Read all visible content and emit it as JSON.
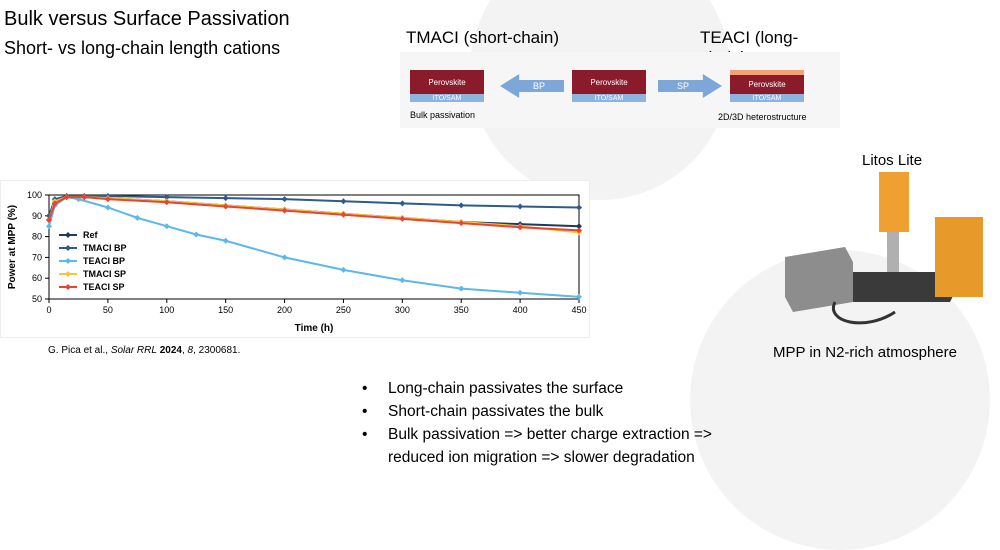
{
  "slide": {
    "title": "Bulk versus Surface Passivation",
    "subtitle": "Short- vs long-chain length cations"
  },
  "schematic": {
    "left_label": "TMACI (short-chain)",
    "right_label": "TEACI (long-chain)",
    "layer_top": "Perovskite",
    "layer_bottom": "ITO/SAM",
    "arrow_left": "BP",
    "arrow_right": "SP",
    "caption_left": "Bulk passivation",
    "caption_right": "2D/3D heterostructure",
    "colors": {
      "perovskite": "#8b1a2b",
      "perovskite_2d": "#f4a27a",
      "substrate": "#8db3df",
      "arrow": "#7da7d9"
    }
  },
  "reference": {
    "authors": "G. Pica et al., ",
    "journal": "Solar RRL",
    "year": "2024",
    "volume": "8",
    "article": "2300681."
  },
  "instrument": {
    "title": "Litos Lite",
    "caption": "MPP in N2-rich atmosphere"
  },
  "bullets": [
    "Long-chain passivates the surface",
    "Short-chain passivates the bulk",
    "Bulk passivation => better charge extraction =>",
    "reduced ion migration => slower degradation"
  ],
  "chart_data": {
    "type": "line",
    "xlabel": "Time (h)",
    "ylabel": "Power at MPP (%)",
    "xlim": [
      0,
      450
    ],
    "ylim": [
      50,
      100
    ],
    "xticks": [
      0,
      50,
      100,
      150,
      200,
      250,
      300,
      350,
      400,
      450
    ],
    "yticks": [
      50,
      60,
      70,
      80,
      90,
      100
    ],
    "grid": false,
    "legend_position": "left",
    "series": [
      {
        "name": "Ref",
        "color": "#1f3a5f",
        "x": [
          0,
          5,
          15,
          30,
          50,
          100,
          150,
          200,
          250,
          300,
          350,
          400,
          450
        ],
        "y": [
          88,
          97,
          99,
          99,
          98.5,
          97,
          95,
          93,
          91,
          89,
          87,
          86,
          85
        ]
      },
      {
        "name": "TMACI BP",
        "color": "#2e5b8a",
        "x": [
          0,
          5,
          15,
          30,
          50,
          100,
          150,
          200,
          250,
          300,
          350,
          400,
          450
        ],
        "y": [
          90,
          98,
          99.5,
          99.5,
          99.5,
          99,
          98.5,
          98,
          97,
          96,
          95,
          94.5,
          94
        ]
      },
      {
        "name": "TEACI BP",
        "color": "#5bb8ec",
        "x": [
          0,
          5,
          15,
          25,
          50,
          75,
          100,
          125,
          150,
          200,
          250,
          300,
          350,
          400,
          450
        ],
        "y": [
          85,
          95,
          99,
          98,
          94,
          89,
          85,
          81,
          78,
          70,
          64,
          59,
          55,
          53,
          51
        ]
      },
      {
        "name": "TMACI SP",
        "color": "#f5c542",
        "x": [
          0,
          5,
          15,
          30,
          50,
          100,
          150,
          200,
          250,
          300,
          350,
          400,
          450
        ],
        "y": [
          88,
          97,
          99,
          99,
          98.5,
          97,
          95,
          93,
          91,
          89,
          87,
          85,
          82
        ]
      },
      {
        "name": "TEACI SP",
        "color": "#e8452f",
        "x": [
          0,
          5,
          15,
          30,
          50,
          100,
          150,
          200,
          250,
          300,
          350,
          400,
          450
        ],
        "y": [
          88,
          96,
          99,
          99,
          98,
          96.5,
          94.5,
          92.5,
          90.5,
          88.5,
          86.5,
          84.5,
          83
        ]
      }
    ]
  }
}
